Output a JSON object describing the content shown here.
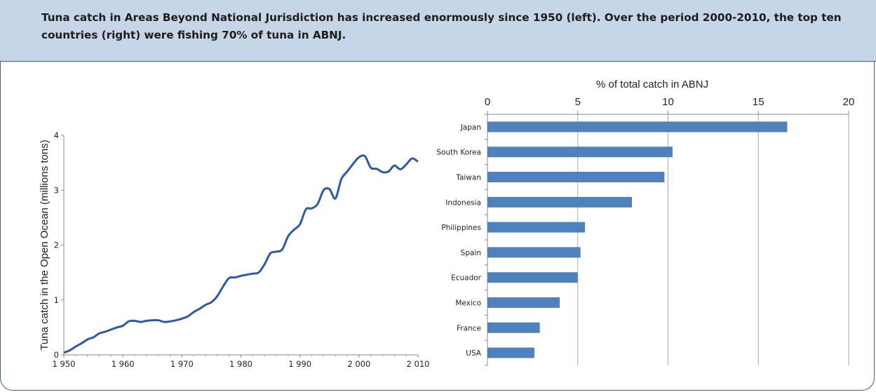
{
  "caption": "Tuna catch in Areas Beyond National Jurisdiction has increased enormously since 1950 (left). Over the period 2000-2010, the top ten countries (right) were fishing 70% of tuna in ABNJ.",
  "colors": {
    "line": "#2e59a8",
    "bar": "#4f81bd",
    "axis": "#888888",
    "grid": "#a8a8a8",
    "caption_bg": "#c6d6e8",
    "frame": "#3a5f85"
  },
  "chart_data": [
    {
      "type": "line",
      "title": "",
      "xlabel": "",
      "ylabel": "Tuna catch in the Open Ocean (millions tons)",
      "xlim": [
        1950,
        2010
      ],
      "ylim": [
        0,
        4
      ],
      "x_ticks": [
        1950,
        1960,
        1970,
        1980,
        1990,
        2000,
        2010
      ],
      "x_tick_labels": [
        "1 950",
        "1 960",
        "1 970",
        "1 980",
        "1 990",
        "2 000",
        "2 010"
      ],
      "y_ticks": [
        0,
        1,
        2,
        3,
        4
      ],
      "y_tick_labels": [
        "0",
        "1",
        "2",
        "3",
        "4"
      ],
      "grid": false,
      "series": [
        {
          "x": [
            1950,
            1951,
            1952,
            1953,
            1954,
            1955,
            1956,
            1957,
            1958,
            1959,
            1960,
            1961,
            1962,
            1963,
            1964,
            1965,
            1966,
            1967,
            1968,
            1969,
            1970,
            1971,
            1972,
            1973,
            1974,
            1975,
            1976,
            1977,
            1978,
            1979,
            1980,
            1981,
            1982,
            1983,
            1984,
            1985,
            1986,
            1987,
            1988,
            1989,
            1990,
            1991,
            1992,
            1993,
            1994,
            1995,
            1996,
            1997,
            1998,
            1999,
            2000,
            2001,
            2002,
            2003,
            2004,
            2005,
            2006,
            2007,
            2008,
            2009,
            2010
          ],
          "y": [
            0.04,
            0.08,
            0.15,
            0.21,
            0.28,
            0.32,
            0.39,
            0.42,
            0.46,
            0.5,
            0.53,
            0.61,
            0.62,
            0.6,
            0.62,
            0.63,
            0.63,
            0.6,
            0.61,
            0.63,
            0.66,
            0.7,
            0.78,
            0.84,
            0.91,
            0.96,
            1.07,
            1.25,
            1.4,
            1.41,
            1.44,
            1.46,
            1.48,
            1.5,
            1.65,
            1.85,
            1.88,
            1.92,
            2.16,
            2.28,
            2.38,
            2.65,
            2.67,
            2.75,
            3.0,
            3.02,
            2.85,
            3.2,
            3.34,
            3.48,
            3.6,
            3.62,
            3.41,
            3.39,
            3.33,
            3.34,
            3.45,
            3.38,
            3.47,
            3.58,
            3.52
          ]
        }
      ]
    },
    {
      "type": "bar",
      "orientation": "horizontal",
      "title": "",
      "xlabel": "% of total catch in ABNJ",
      "ylabel": "",
      "xlim": [
        0,
        20
      ],
      "x_ticks": [
        0,
        5,
        10,
        15,
        20
      ],
      "x_tick_labels": [
        "0",
        "5",
        "10",
        "15",
        "20"
      ],
      "x_axis_position": "top",
      "grid": true,
      "categories": [
        "Japan",
        "South Korea",
        "Taiwan",
        "Indonesia",
        "Philippines",
        "Spain",
        "Ecuador",
        "Mexico",
        "France",
        "USA"
      ],
      "values": [
        16.6,
        10.25,
        9.8,
        8.0,
        5.4,
        5.15,
        5.0,
        4.0,
        2.9,
        2.6
      ]
    }
  ]
}
